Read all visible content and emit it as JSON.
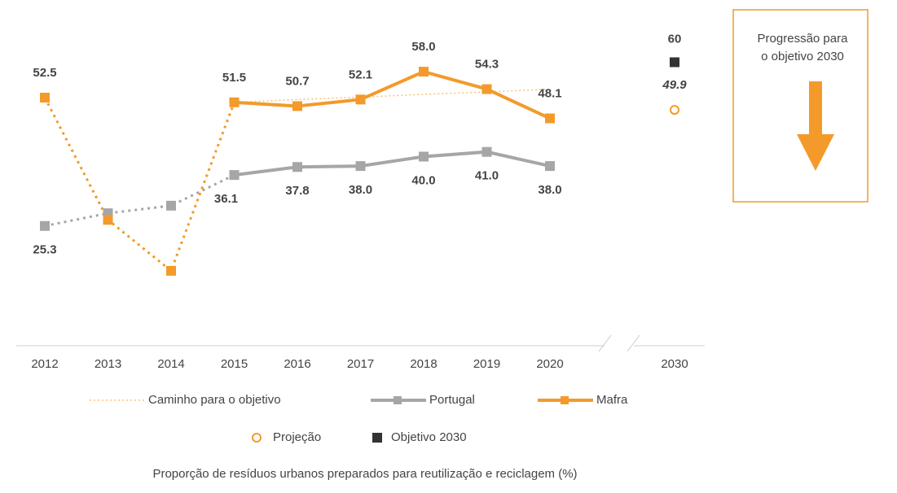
{
  "chart_data": {
    "type": "line",
    "categories": [
      "2012",
      "2013",
      "2014",
      "2015",
      "2016",
      "2017",
      "2018",
      "2019",
      "2020",
      "2030"
    ],
    "series": [
      {
        "name": "Caminho para o objetivo",
        "color": "#f7c27a",
        "style": "dotted",
        "values": [
          null,
          null,
          null,
          51.5,
          52.1,
          52.6,
          53.2,
          53.7,
          54.3,
          null
        ]
      },
      {
        "name": "Portugal",
        "color": "#a6a6a6",
        "dotted_until": 3,
        "label_side": "below",
        "values": [
          25.3,
          28.0,
          29.6,
          36.1,
          37.8,
          38.0,
          40.0,
          41.0,
          38.0,
          null
        ],
        "value_labels": [
          "25.3",
          null,
          null,
          "36.1",
          "37.8",
          "38.0",
          "40.0",
          "41.0",
          "38.0",
          null
        ]
      },
      {
        "name": "Mafra",
        "color": "#f39a2b",
        "dotted_until": 3,
        "label_side": "above",
        "values": [
          52.5,
          26.6,
          15.8,
          51.5,
          50.7,
          52.1,
          58.0,
          54.3,
          48.1,
          null
        ],
        "value_labels": [
          "52.5",
          null,
          null,
          "51.5",
          "50.7",
          "52.1",
          "58.0",
          "54.3",
          "48.1",
          null
        ]
      },
      {
        "name": "Projeção",
        "color": "#f39a2b",
        "marker": "circle",
        "label_side": "below",
        "values": [
          null,
          null,
          null,
          null,
          null,
          null,
          null,
          null,
          null,
          49.9
        ],
        "value_labels": [
          null,
          null,
          null,
          null,
          null,
          null,
          null,
          null,
          null,
          "49.9"
        ]
      },
      {
        "name": "Objetivo 2030",
        "color": "#333333",
        "marker": "square",
        "label_side": "above",
        "values": [
          null,
          null,
          null,
          null,
          null,
          null,
          null,
          null,
          null,
          60
        ]
      }
    ],
    "x_label": "Proporção de resíduos urbanos preparados para reutilização e reciclagem (%)",
    "annotation": [
      "Progressão para",
      "o objetivo 2030"
    ]
  }
}
